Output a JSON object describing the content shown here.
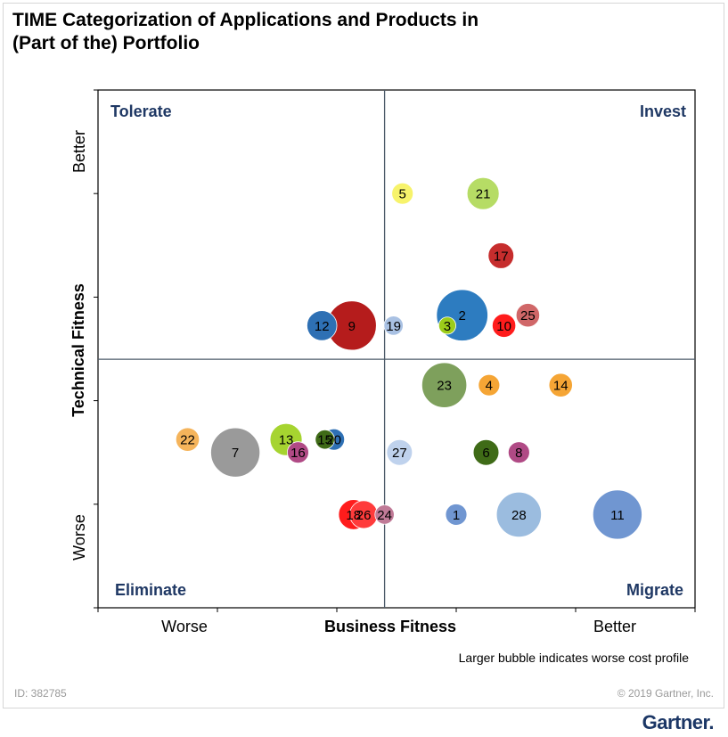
{
  "title": {
    "line1": "TIME Categorization of Applications and Products in",
    "line2": "(Part of the) Portfolio"
  },
  "footnote": "Larger bubble indicates worse cost profile",
  "doc_id": "ID: 382785",
  "copyright": "© 2019 Gartner, Inc.",
  "brand": "Gartner.",
  "colors": {
    "quadrant_label": "#1f3864",
    "axis": "#000000",
    "divider": "#4d5b69"
  },
  "chart_data": {
    "type": "scatter",
    "xlabel": "Business Fitness",
    "ylabel": "Technical Fitness",
    "x_tick_labels": {
      "low": "Worse",
      "high": "Better"
    },
    "y_tick_labels": {
      "low": "Worse",
      "high": "Better"
    },
    "xlim": [
      0,
      100
    ],
    "ylim": [
      0,
      100
    ],
    "divider": {
      "x": 48,
      "y": 48
    },
    "quadrants": {
      "top_left": "Tolerate",
      "top_right": "Invest",
      "bottom_left": "Eliminate",
      "bottom_right": "Migrate"
    },
    "size_note": "Larger bubble indicates worse cost profile",
    "points": [
      {
        "label": "1",
        "x": 60.0,
        "y": 18.0,
        "size": 1.0,
        "color": "#7096d1"
      },
      {
        "label": "2",
        "x": 61.0,
        "y": 56.5,
        "size": 2.4,
        "color": "#2d7cc0"
      },
      {
        "label": "3",
        "x": 58.5,
        "y": 54.5,
        "size": 0.8,
        "color": "#9ccc1a"
      },
      {
        "label": "4",
        "x": 65.5,
        "y": 43.0,
        "size": 1.0,
        "color": "#f5a535"
      },
      {
        "label": "5",
        "x": 51.0,
        "y": 80.0,
        "size": 1.0,
        "color": "#f7f36b"
      },
      {
        "label": "6",
        "x": 65.0,
        "y": 30.0,
        "size": 1.2,
        "color": "#3f6b17"
      },
      {
        "label": "7",
        "x": 23.0,
        "y": 30.0,
        "size": 2.3,
        "color": "#9a9a9a"
      },
      {
        "label": "8",
        "x": 70.5,
        "y": 30.0,
        "size": 1.0,
        "color": "#b04a85"
      },
      {
        "label": "9",
        "x": 42.5,
        "y": 54.5,
        "size": 2.3,
        "color": "#b51c1c"
      },
      {
        "label": "10",
        "x": 68.0,
        "y": 54.5,
        "size": 1.1,
        "color": "#ff1c1c"
      },
      {
        "label": "11",
        "x": 87.0,
        "y": 18.0,
        "size": 2.3,
        "color": "#7096d1"
      },
      {
        "label": "12",
        "x": 37.5,
        "y": 54.5,
        "size": 1.4,
        "color": "#2e70b4"
      },
      {
        "label": "13",
        "x": 31.5,
        "y": 32.5,
        "size": 1.5,
        "color": "#a6d430"
      },
      {
        "label": "14",
        "x": 77.5,
        "y": 43.0,
        "size": 1.1,
        "color": "#f5a535"
      },
      {
        "label": "15",
        "x": 38.0,
        "y": 32.5,
        "size": 0.9,
        "color": "#3f6b17"
      },
      {
        "label": "16",
        "x": 33.5,
        "y": 30.0,
        "size": 1.0,
        "color": "#b04a85"
      },
      {
        "label": "17",
        "x": 67.5,
        "y": 68.0,
        "size": 1.2,
        "color": "#c62d2d"
      },
      {
        "label": "18",
        "x": 42.8,
        "y": 18.0,
        "size": 1.4,
        "color": "#ff1c1c"
      },
      {
        "label": "19",
        "x": 49.5,
        "y": 54.5,
        "size": 0.9,
        "color": "#a9c1e3"
      },
      {
        "label": "20",
        "x": 39.5,
        "y": 32.5,
        "size": 1.0,
        "color": "#2e70b4"
      },
      {
        "label": "21",
        "x": 64.5,
        "y": 80.0,
        "size": 1.5,
        "color": "#b6dc65"
      },
      {
        "label": "22",
        "x": 15.0,
        "y": 32.5,
        "size": 1.1,
        "color": "#f5b45b"
      },
      {
        "label": "23",
        "x": 58.0,
        "y": 43.0,
        "size": 2.1,
        "color": "#7ea05c"
      },
      {
        "label": "24",
        "x": 48.0,
        "y": 18.0,
        "size": 0.9,
        "color": "#c07a97"
      },
      {
        "label": "25",
        "x": 72.0,
        "y": 56.5,
        "size": 1.1,
        "color": "#d06768"
      },
      {
        "label": "26",
        "x": 44.5,
        "y": 18.0,
        "size": 1.3,
        "color": "#ff3b3b"
      },
      {
        "label": "27",
        "x": 50.5,
        "y": 30.0,
        "size": 1.2,
        "color": "#bfd2ed"
      },
      {
        "label": "28",
        "x": 70.5,
        "y": 18.0,
        "size": 2.1,
        "color": "#9bbcdf"
      }
    ]
  }
}
